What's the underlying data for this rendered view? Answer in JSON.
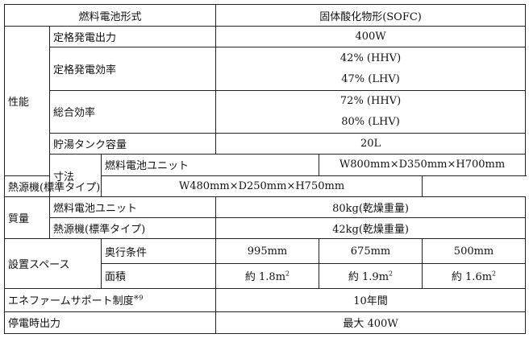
{
  "header": {
    "col1": "燃料電池形式",
    "col2": "固体酸化物形(SOFC)"
  },
  "performance": {
    "group_label": "性能",
    "rated_output": {
      "label": "定格発電出力",
      "value": "400W"
    },
    "rated_efficiency": {
      "label": "定格発電効率",
      "hhv": "42% (HHV)",
      "lhv": "47% (LHV)"
    },
    "total_efficiency": {
      "label": "総合効率",
      "hhv": "72% (HHV)",
      "lhv": "80% (LHV)"
    },
    "tank_capacity": {
      "label": "貯湯タンク容量",
      "value": "20L"
    }
  },
  "dimensions": {
    "group_label": "寸法",
    "fc_unit": {
      "label": "燃料電池ユニット",
      "value": "W800mm×D350mm×H700mm"
    },
    "heat_source": {
      "label": "熱源機(標準タイプ)",
      "value": "W480mm×D250mm×H750mm"
    }
  },
  "mass": {
    "group_label": "質量",
    "fc_unit": {
      "label": "燃料電池ユニット",
      "value": "80kg(乾燥重量)"
    },
    "heat_source": {
      "label": "熱源機(標準タイプ)",
      "value": "42kg(乾燥重量)"
    }
  },
  "space": {
    "group_label": "設置スペース",
    "depth_label": "奥行条件",
    "area_label": "面積",
    "depths": [
      "995mm",
      "675mm",
      "500mm"
    ],
    "areas": [
      "約 1.8m",
      "約 1.9m",
      "約 1.6m"
    ],
    "area_unit_sup": "2"
  },
  "support": {
    "label": "エネファームサポート制度",
    "note": "※9",
    "value": "10年間"
  },
  "outage": {
    "label": "停電時出力",
    "value": "最大 400W"
  }
}
